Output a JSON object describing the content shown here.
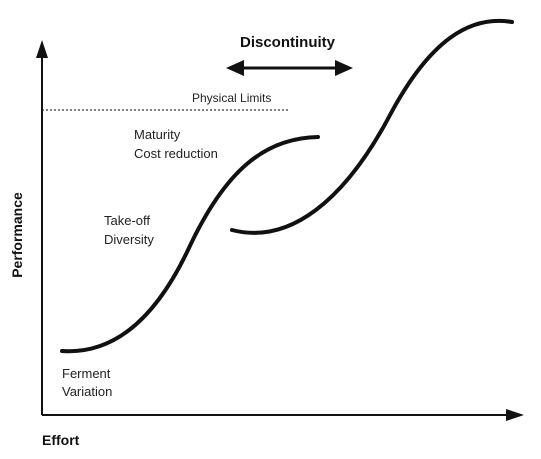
{
  "labels": {
    "discontinuity": "Discontinuity",
    "physical_limits": "Physical Limits",
    "maturity": "Maturity",
    "cost_reduction": "Cost reduction",
    "take_off": "Take-off",
    "diversity": "Diversity",
    "ferment": "Ferment",
    "variation": "Variation",
    "y_axis": "Performance",
    "x_axis": "Effort"
  },
  "colors": {
    "ink": "#111111",
    "background": "#ffffff"
  }
}
